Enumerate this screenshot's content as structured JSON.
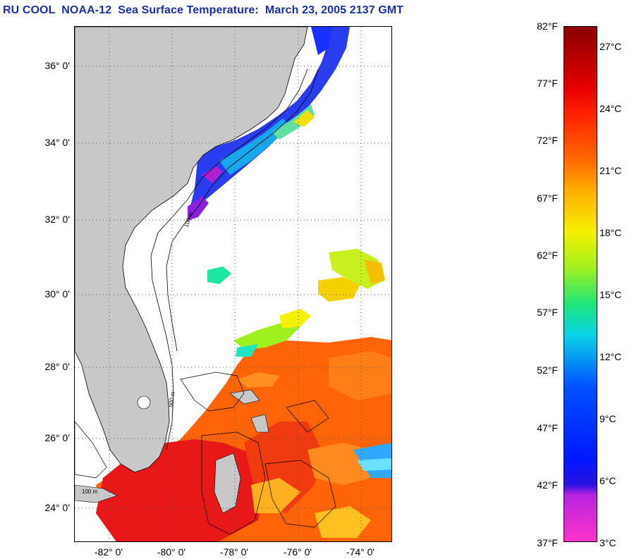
{
  "title": "RU COOL  NOAA-12  Sea Surface Temperature:  March 23, 2005 2137 GMT",
  "map": {
    "lat_labels": [
      "36° 0'",
      "34° 0'",
      "32° 0'",
      "30° 0'",
      "28° 0'",
      "26° 0'",
      "24° 0'"
    ],
    "lon_labels": [
      "-82° 0'",
      "-80° 0'",
      "-78° 0'",
      "-76° 0'",
      "-74° 0'"
    ],
    "contour_labels": [
      "100 m",
      "100 m",
      "500 m"
    ],
    "colors": {
      "land": "#c8c8c8",
      "grid": "#555555",
      "no_data": "#ffffff"
    }
  },
  "colorbar": {
    "fahrenheit": [
      "82°F",
      "77°F",
      "72°F",
      "67°F",
      "62°F",
      "57°F",
      "52°F",
      "47°F",
      "42°F",
      "37°F"
    ],
    "celsius": [
      "27°C",
      "24°C",
      "21°C",
      "18°C",
      "15°C",
      "12°C",
      "9°C",
      "6°C",
      "3°C"
    ]
  }
}
